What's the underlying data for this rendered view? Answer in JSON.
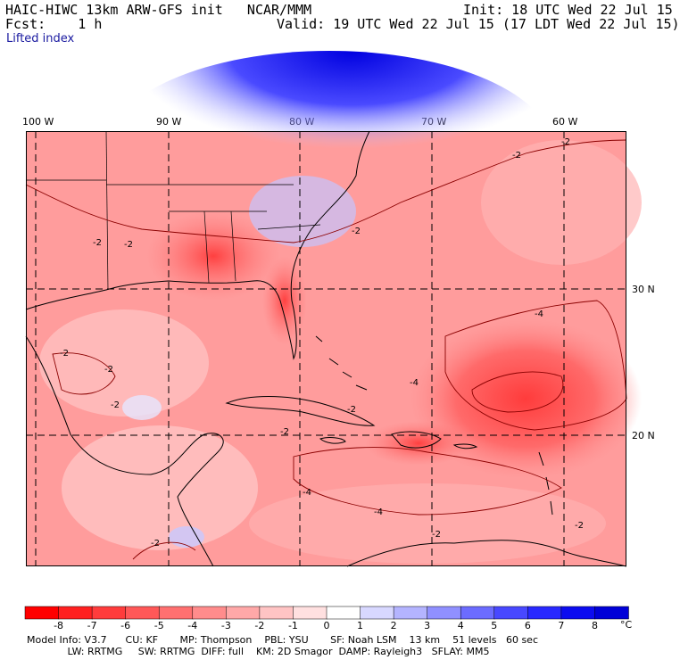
{
  "header": {
    "title": "HAIC-HIWC 13km ARW-GFS init   NCAR/MMM",
    "init": "Init: 18 UTC Wed 22 Jul 15",
    "fcst_label": "Fcst:    1 h",
    "valid": "Valid: 19 UTC Wed 22 Jul 15 (17 LDT Wed 22 Jul 15)",
    "field": "Lifted index"
  },
  "map": {
    "lon_labels": [
      "100 W",
      "90 W",
      "80 W",
      "70 W",
      "60 W"
    ],
    "lat_labels": [
      "30 N",
      "20 N"
    ],
    "contour_labels": [
      "-2",
      "-2",
      "-2",
      "-2",
      "-2",
      "-2",
      "-2",
      "-2",
      "-2",
      "-4",
      "-4",
      "-4",
      "-4",
      "-2",
      "-2",
      "-2",
      "-2"
    ]
  },
  "colorbar": {
    "ticks": [
      "-8",
      "-7",
      "-6",
      "-5",
      "-4",
      "-3",
      "-2",
      "-1",
      "0",
      "1",
      "2",
      "3",
      "4",
      "5",
      "6",
      "7",
      "8"
    ],
    "unit": "°C",
    "colors": [
      "#ff0000",
      "#ff2020",
      "#ff3c3c",
      "#ff5858",
      "#ff7070",
      "#ff8c8c",
      "#ffa8a8",
      "#ffc4c4",
      "#ffe0e0",
      "#ffffff",
      "#d8d8ff",
      "#b4b4ff",
      "#9090ff",
      "#6c6cff",
      "#4848ff",
      "#2828ff",
      "#0c0cf0",
      "#0000d8"
    ]
  },
  "model_info": {
    "line1": "Model Info: V3.7      CU: KF       MP: Thompson    PBL: YSU       SF: Noah LSM    13 km    51 levels   60 sec",
    "line2": "             LW: RRTMG     SW: RRTMG  DIFF: full    KM: 2D Smagor  DAMP: Rayleigh3   SFLAY: MM5"
  }
}
